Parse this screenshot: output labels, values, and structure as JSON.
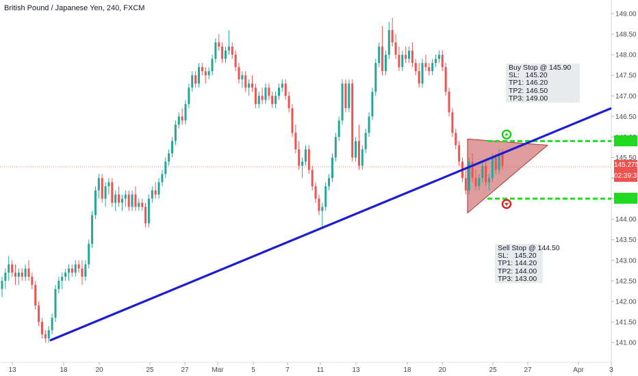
{
  "title": "British Pound / Japanese Yen, 240, FXCM",
  "price_label": "145.275",
  "countdown_label": "02:39:36",
  "buy_note": [
    "Buy Stop @ 145.90",
    "SL:   145.20",
    "TP1: 146.20",
    "TP2: 146.50",
    "TP3: 149.00"
  ],
  "sell_note": [
    "Sell Stop @ 144.50",
    "SL:   145.20",
    "TP1: 144.20",
    "TP2: 144.00",
    "TP3: 143.00"
  ],
  "colors": {
    "up": "#26a69a",
    "down": "#ef5350",
    "trendline": "#1c1cd4",
    "level": "#22dd22",
    "triangle_fill": "#c44a4a",
    "arrow_up": "#22cc22",
    "arrow_down": "#dd2222"
  },
  "chart_data": {
    "type": "candlestick",
    "symbol": "GBPJPY",
    "timeframe": "240",
    "ylim": [
      140.7,
      149.25
    ],
    "y_ticks": [
      141.0,
      141.5,
      142.0,
      142.5,
      143.0,
      143.5,
      144.0,
      144.5,
      145.0,
      145.5,
      146.0,
      146.5,
      147.0,
      147.5,
      148.0,
      148.5,
      149.0
    ],
    "x_ticks": [
      "13",
      "18",
      "20",
      "25",
      "27",
      "Mar",
      "5",
      "7",
      "11",
      "13",
      "18",
      "20",
      "25",
      "27",
      "Apr",
      "3"
    ],
    "current_price": 145.275,
    "buy_stop_level": 145.9,
    "sell_stop_level": 144.5,
    "trendline": {
      "start": {
        "x": "16",
        "y": 141.05
      },
      "end": {
        "x": "Apr 4",
        "y": 146.7
      }
    },
    "triangle": {
      "apex_left_top": 145.95,
      "apex_left_bottom": 144.15,
      "apex_right": 145.8
    },
    "candles": [
      [
        142.3,
        142.6,
        142.1,
        142.5
      ],
      [
        142.5,
        142.8,
        142.3,
        142.7
      ],
      [
        142.7,
        143.1,
        142.5,
        142.9
      ],
      [
        142.9,
        143.0,
        142.6,
        142.7
      ],
      [
        142.7,
        142.9,
        142.4,
        142.6
      ],
      [
        142.6,
        142.8,
        142.4,
        142.7
      ],
      [
        142.7,
        142.8,
        142.5,
        142.6
      ],
      [
        142.6,
        142.9,
        142.5,
        142.8
      ],
      [
        142.8,
        143.0,
        142.5,
        142.6
      ],
      [
        142.6,
        142.7,
        142.3,
        142.4
      ],
      [
        142.4,
        142.5,
        141.8,
        141.9
      ],
      [
        141.9,
        142.0,
        141.4,
        141.5
      ],
      [
        141.5,
        141.6,
        141.1,
        141.2
      ],
      [
        141.2,
        141.3,
        141.0,
        141.1
      ],
      [
        141.1,
        141.4,
        141.0,
        141.3
      ],
      [
        141.3,
        141.7,
        141.2,
        141.6
      ],
      [
        141.6,
        142.4,
        141.5,
        142.3
      ],
      [
        142.3,
        142.6,
        142.2,
        142.5
      ],
      [
        142.5,
        142.7,
        142.3,
        142.6
      ],
      [
        142.6,
        142.8,
        142.5,
        142.7
      ],
      [
        142.7,
        142.9,
        142.5,
        142.8
      ],
      [
        142.8,
        142.9,
        142.6,
        142.7
      ],
      [
        142.7,
        143.0,
        142.6,
        142.9
      ],
      [
        142.9,
        143.0,
        142.7,
        142.8
      ],
      [
        142.8,
        143.0,
        142.4,
        142.6
      ],
      [
        142.6,
        143.0,
        142.5,
        142.9
      ],
      [
        142.9,
        143.5,
        142.8,
        143.4
      ],
      [
        143.4,
        144.2,
        143.3,
        144.1
      ],
      [
        144.1,
        144.8,
        144.0,
        144.7
      ],
      [
        144.7,
        145.1,
        144.5,
        145.0
      ],
      [
        145.0,
        145.1,
        144.4,
        144.5
      ],
      [
        144.5,
        144.9,
        144.3,
        144.8
      ],
      [
        144.8,
        145.0,
        144.6,
        144.9
      ],
      [
        144.9,
        145.0,
        144.3,
        144.4
      ],
      [
        144.4,
        144.7,
        144.2,
        144.6
      ],
      [
        144.6,
        144.8,
        144.3,
        144.4
      ],
      [
        144.4,
        144.6,
        144.2,
        144.5
      ],
      [
        144.5,
        144.7,
        144.3,
        144.6
      ],
      [
        144.6,
        144.7,
        144.2,
        144.3
      ],
      [
        144.3,
        144.7,
        144.2,
        144.6
      ],
      [
        144.6,
        144.8,
        144.2,
        144.3
      ],
      [
        144.3,
        144.5,
        144.2,
        144.4
      ],
      [
        144.4,
        144.5,
        144.2,
        144.3
      ],
      [
        144.3,
        144.4,
        143.8,
        143.9
      ],
      [
        143.9,
        144.6,
        143.8,
        144.5
      ],
      [
        144.5,
        144.8,
        144.4,
        144.7
      ],
      [
        144.7,
        144.9,
        144.5,
        144.6
      ],
      [
        144.6,
        145.0,
        144.5,
        144.9
      ],
      [
        144.9,
        145.2,
        144.8,
        145.1
      ],
      [
        145.1,
        145.5,
        145.0,
        145.4
      ],
      [
        145.4,
        145.7,
        145.3,
        145.6
      ],
      [
        145.6,
        146.0,
        145.5,
        145.9
      ],
      [
        145.9,
        146.4,
        145.8,
        146.3
      ],
      [
        146.3,
        146.6,
        146.2,
        146.5
      ],
      [
        146.5,
        146.7,
        146.3,
        146.4
      ],
      [
        146.4,
        146.9,
        146.3,
        146.8
      ],
      [
        146.8,
        147.3,
        146.7,
        147.2
      ],
      [
        147.2,
        147.6,
        147.1,
        147.5
      ],
      [
        147.5,
        147.6,
        147.2,
        147.3
      ],
      [
        147.3,
        147.8,
        147.2,
        147.7
      ],
      [
        147.7,
        147.8,
        147.5,
        147.6
      ],
      [
        147.6,
        147.7,
        147.3,
        147.5
      ],
      [
        147.5,
        147.7,
        147.4,
        147.6
      ],
      [
        147.6,
        148.0,
        147.5,
        147.9
      ],
      [
        147.9,
        148.4,
        147.8,
        148.3
      ],
      [
        148.3,
        148.5,
        148.1,
        148.2
      ],
      [
        148.2,
        148.3,
        147.8,
        147.9
      ],
      [
        147.9,
        148.2,
        147.8,
        148.1
      ],
      [
        148.1,
        148.6,
        148.0,
        148.2
      ],
      [
        148.2,
        148.3,
        147.9,
        148.0
      ],
      [
        148.0,
        148.1,
        147.6,
        147.7
      ],
      [
        147.7,
        147.8,
        147.3,
        147.4
      ],
      [
        147.4,
        147.6,
        147.2,
        147.5
      ],
      [
        147.5,
        147.6,
        147.1,
        147.2
      ],
      [
        147.2,
        147.4,
        147.0,
        147.3
      ],
      [
        147.3,
        147.5,
        147.1,
        147.2
      ],
      [
        147.2,
        147.3,
        146.7,
        146.8
      ],
      [
        146.8,
        147.1,
        146.7,
        147.0
      ],
      [
        147.0,
        147.2,
        146.8,
        146.9
      ],
      [
        146.9,
        147.3,
        146.8,
        147.2
      ],
      [
        147.2,
        147.3,
        146.9,
        147.0
      ],
      [
        147.0,
        147.1,
        146.7,
        146.8
      ],
      [
        146.8,
        147.1,
        146.7,
        147.0
      ],
      [
        147.0,
        147.3,
        146.9,
        147.2
      ],
      [
        147.2,
        147.4,
        147.1,
        147.3
      ],
      [
        147.3,
        147.4,
        146.9,
        147.0
      ],
      [
        147.0,
        147.1,
        146.6,
        146.7
      ],
      [
        146.7,
        146.8,
        146.0,
        146.1
      ],
      [
        146.1,
        146.3,
        145.6,
        145.7
      ],
      [
        145.7,
        145.9,
        145.2,
        145.3
      ],
      [
        145.3,
        145.5,
        145.0,
        145.4
      ],
      [
        145.4,
        145.8,
        145.3,
        145.7
      ],
      [
        145.7,
        145.8,
        145.1,
        145.2
      ],
      [
        145.2,
        145.3,
        144.7,
        144.8
      ],
      [
        144.8,
        144.9,
        144.4,
        144.5
      ],
      [
        144.5,
        144.6,
        144.1,
        144.2
      ],
      [
        144.2,
        144.4,
        143.8,
        144.3
      ],
      [
        144.3,
        144.9,
        144.2,
        144.8
      ],
      [
        144.8,
        145.1,
        144.7,
        145.0
      ],
      [
        145.0,
        145.6,
        144.9,
        145.5
      ],
      [
        145.5,
        146.1,
        145.4,
        146.0
      ],
      [
        146.0,
        146.5,
        145.9,
        146.4
      ],
      [
        146.4,
        147.4,
        146.3,
        147.3
      ],
      [
        147.3,
        147.4,
        146.6,
        146.7
      ],
      [
        146.7,
        147.4,
        146.6,
        147.3
      ],
      [
        147.3,
        147.4,
        145.4,
        145.5
      ],
      [
        145.5,
        146.0,
        145.4,
        145.9
      ],
      [
        145.9,
        146.3,
        145.2,
        145.3
      ],
      [
        145.3,
        145.8,
        145.2,
        145.7
      ],
      [
        145.7,
        146.2,
        145.6,
        146.1
      ],
      [
        146.1,
        146.6,
        146.0,
        146.5
      ],
      [
        146.5,
        147.2,
        146.4,
        147.1
      ],
      [
        147.1,
        147.9,
        147.0,
        147.8
      ],
      [
        147.8,
        148.3,
        147.7,
        148.2
      ],
      [
        148.2,
        148.7,
        147.5,
        147.6
      ],
      [
        147.6,
        148.1,
        147.5,
        148.0
      ],
      [
        148.0,
        148.8,
        147.9,
        148.6
      ],
      [
        148.6,
        148.9,
        148.2,
        148.3
      ],
      [
        148.3,
        148.5,
        147.9,
        148.0
      ],
      [
        148.0,
        148.2,
        147.6,
        147.7
      ],
      [
        147.7,
        148.1,
        147.6,
        148.0
      ],
      [
        148.0,
        148.2,
        147.8,
        147.9
      ],
      [
        147.9,
        148.2,
        147.8,
        148.1
      ],
      [
        148.1,
        148.3,
        147.7,
        147.8
      ],
      [
        147.8,
        147.9,
        147.5,
        147.6
      ],
      [
        147.6,
        147.8,
        147.2,
        147.3
      ],
      [
        147.3,
        147.9,
        147.2,
        147.8
      ],
      [
        147.8,
        148.0,
        147.6,
        147.7
      ],
      [
        147.7,
        147.8,
        147.5,
        147.6
      ],
      [
        147.6,
        147.9,
        147.5,
        147.8
      ],
      [
        147.8,
        148.0,
        147.7,
        147.9
      ],
      [
        147.9,
        148.1,
        147.8,
        148.0
      ],
      [
        148.0,
        148.1,
        147.6,
        147.7
      ],
      [
        147.7,
        147.8,
        147.0,
        147.1
      ],
      [
        147.1,
        147.2,
        146.5,
        146.6
      ],
      [
        146.6,
        146.7,
        146.0,
        146.1
      ],
      [
        146.1,
        146.2,
        145.7,
        145.8
      ],
      [
        145.8,
        145.9,
        145.3,
        145.4
      ],
      [
        145.4,
        145.5,
        144.9,
        145.0
      ],
      [
        145.0,
        145.2,
        144.6,
        144.7
      ],
      [
        144.7,
        145.5,
        144.6,
        145.4
      ],
      [
        145.4,
        145.6,
        144.9,
        145.0
      ],
      [
        145.0,
        145.2,
        144.7,
        144.8
      ],
      [
        144.8,
        145.1,
        144.7,
        145.0
      ],
      [
        145.0,
        145.4,
        144.9,
        145.3
      ],
      [
        145.3,
        145.4,
        144.8,
        144.9
      ],
      [
        144.9,
        145.1,
        144.7,
        145.0
      ],
      [
        145.0,
        145.6,
        144.9,
        145.5
      ],
      [
        145.5,
        145.6,
        145.1,
        145.2
      ],
      [
        145.2,
        145.7,
        145.1,
        145.6
      ],
      [
        145.6,
        145.7,
        145.2,
        145.3
      ]
    ]
  }
}
